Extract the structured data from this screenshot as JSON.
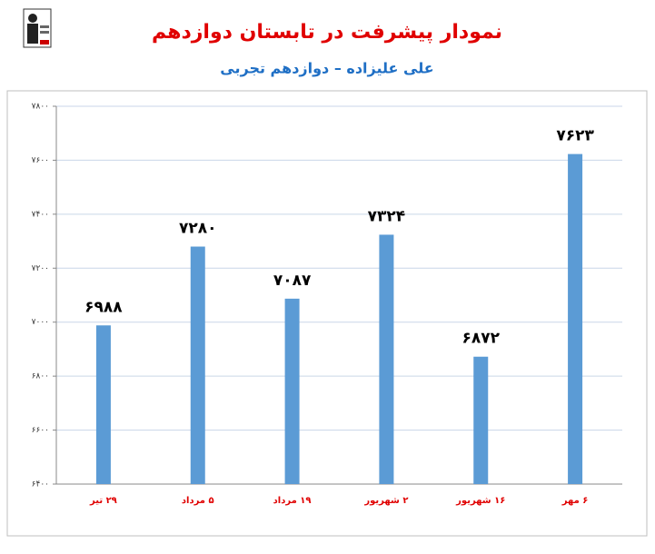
{
  "chart_data": {
    "type": "bar",
    "title": "نمودار پیشرفت در تابستان دوازدهم",
    "subtitle": "علی علیزاده – دوازدهم تجربی",
    "categories": [
      "۲۹ تیر",
      "۵ مرداد",
      "۱۹ مرداد",
      "۲ شهریور",
      "۱۶ شهریور",
      "۶ مهر"
    ],
    "values": [
      6988,
      7280,
      7087,
      7324,
      6872,
      7623
    ],
    "value_labels": [
      "۶۹۸۸",
      "۷۲۸۰",
      "۷۰۸۷",
      "۷۳۲۴",
      "۶۸۷۲",
      "۷۶۲۳"
    ],
    "color": "#5b9bd5",
    "ylim": [
      6400,
      7800
    ],
    "yticks": [
      {
        "value": 6400,
        "label": "۶۴۰۰"
      },
      {
        "value": 6600,
        "label": "۶۶۰۰"
      },
      {
        "value": 6800,
        "label": "۶۸۰۰"
      },
      {
        "value": 7000,
        "label": "۷۰۰۰"
      },
      {
        "value": 7200,
        "label": "۷۲۰۰"
      },
      {
        "value": 7400,
        "label": "۷۴۰۰"
      },
      {
        "value": 7600,
        "label": "۷۶۰۰"
      },
      {
        "value": 7800,
        "label": "۷۸۰۰"
      }
    ],
    "grid": true
  }
}
